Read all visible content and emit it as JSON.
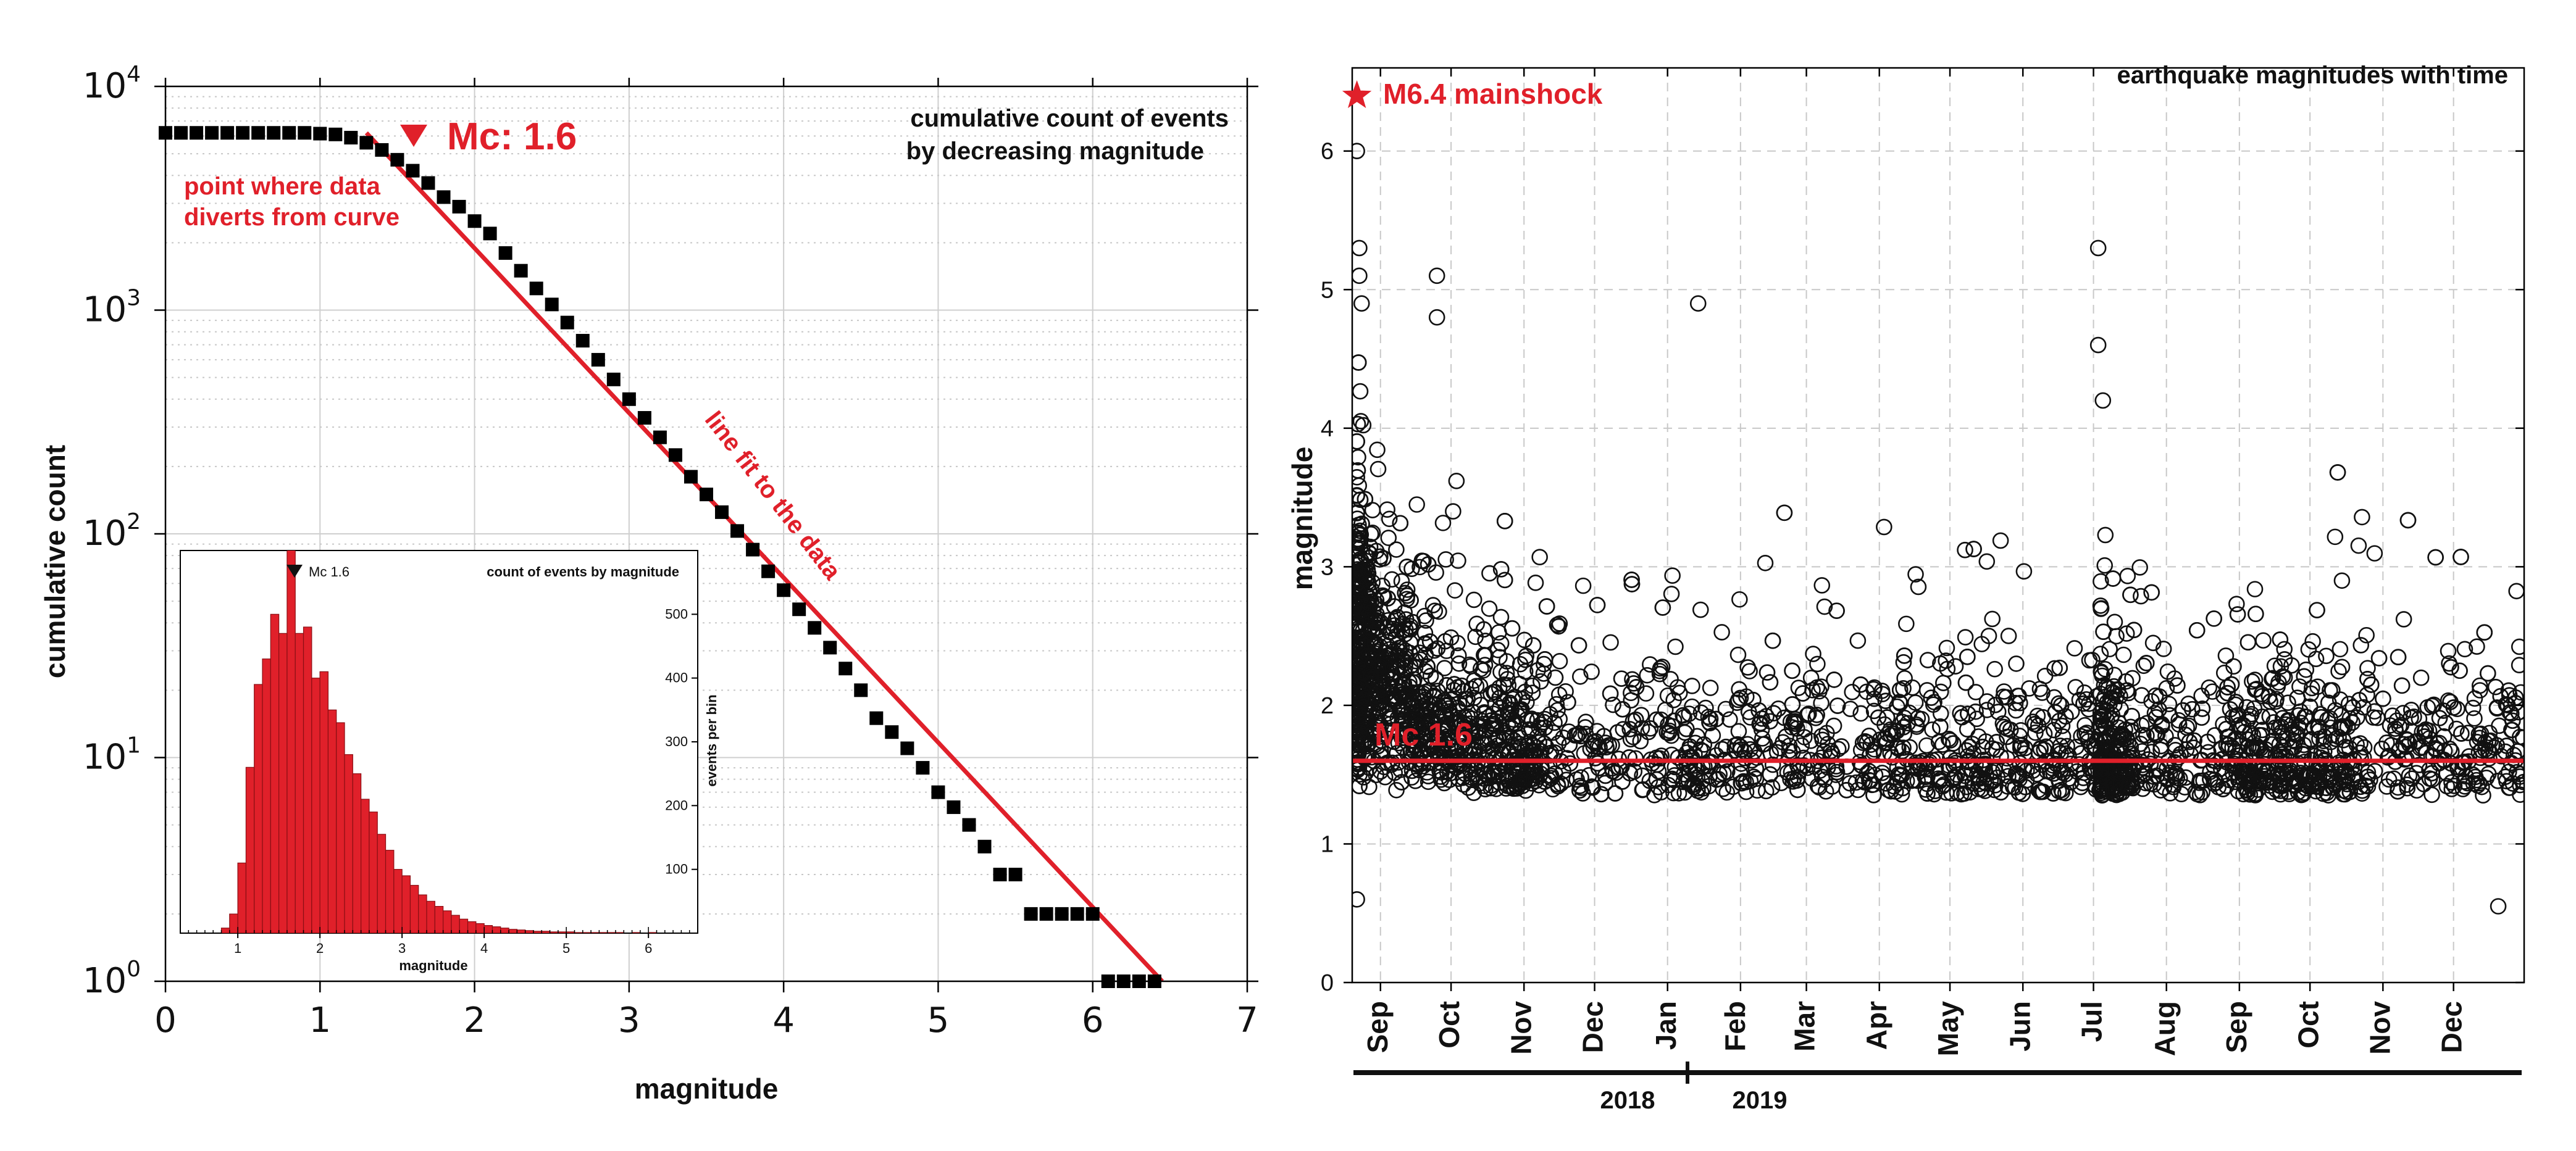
{
  "chart_data": [
    {
      "type": "scatter",
      "title": "cumulative count of events by decreasing magnitude",
      "xlabel": "magnitude",
      "ylabel": "cumulative count",
      "xlim": [
        0,
        7
      ],
      "ylim": [
        1,
        10000
      ],
      "yscale": "log",
      "x_ticks": [
        "0",
        "1",
        "2",
        "3",
        "4",
        "5",
        "6",
        "7"
      ],
      "y_ticks": [
        {
          "base": "10",
          "exp": "0"
        },
        {
          "base": "10",
          "exp": "1"
        },
        {
          "base": "10",
          "exp": "2"
        },
        {
          "base": "10",
          "exp": "3"
        },
        {
          "base": "10",
          "exp": "4"
        }
      ],
      "grid": true,
      "series": [
        {
          "marker": "square",
          "color": "#000000",
          "points": [
            [
              0.0,
              6200
            ],
            [
              0.1,
              6200
            ],
            [
              0.2,
              6200
            ],
            [
              0.3,
              6200
            ],
            [
              0.4,
              6200
            ],
            [
              0.5,
              6200
            ],
            [
              0.6,
              6200
            ],
            [
              0.7,
              6200
            ],
            [
              0.8,
              6200
            ],
            [
              0.9,
              6200
            ],
            [
              1.0,
              6150
            ],
            [
              1.1,
              6100
            ],
            [
              1.2,
              5900
            ],
            [
              1.3,
              5600
            ],
            [
              1.4,
              5200
            ],
            [
              1.5,
              4700
            ],
            [
              1.6,
              4200
            ],
            [
              1.7,
              3700
            ],
            [
              1.8,
              3200
            ],
            [
              1.9,
              2900
            ],
            [
              2.0,
              2500
            ],
            [
              2.1,
              2200
            ],
            [
              2.2,
              1800
            ],
            [
              2.3,
              1500
            ],
            [
              2.4,
              1250
            ],
            [
              2.5,
              1060
            ],
            [
              2.6,
              880
            ],
            [
              2.7,
              730
            ],
            [
              2.8,
              600
            ],
            [
              2.9,
              490
            ],
            [
              3.0,
              400
            ],
            [
              3.1,
              330
            ],
            [
              3.2,
              270
            ],
            [
              3.3,
              225
            ],
            [
              3.4,
              180
            ],
            [
              3.5,
              150
            ],
            [
              3.6,
              125
            ],
            [
              3.7,
              103
            ],
            [
              3.8,
              85
            ],
            [
              3.9,
              68
            ],
            [
              4.0,
              56
            ],
            [
              4.1,
              46
            ],
            [
              4.2,
              38
            ],
            [
              4.3,
              31
            ],
            [
              4.4,
              25
            ],
            [
              4.5,
              20
            ],
            [
              4.6,
              15
            ],
            [
              4.7,
              13
            ],
            [
              4.8,
              11
            ],
            [
              4.9,
              9
            ],
            [
              5.0,
              7
            ],
            [
              5.1,
              6
            ],
            [
              5.2,
              5
            ],
            [
              5.3,
              4
            ],
            [
              5.4,
              3
            ],
            [
              5.5,
              3
            ],
            [
              5.6,
              2
            ],
            [
              5.7,
              2
            ],
            [
              5.8,
              2
            ],
            [
              5.9,
              2
            ],
            [
              6.0,
              2
            ],
            [
              6.1,
              1
            ],
            [
              6.2,
              1
            ],
            [
              6.3,
              1
            ],
            [
              6.4,
              1
            ]
          ]
        }
      ],
      "fit_line": {
        "label": "line fit to the data",
        "color": "#e0202a",
        "from": [
          1.3,
          6200
        ],
        "to": [
          6.45,
          1
        ]
      },
      "annotations": {
        "mc_label": "Mc: 1.6",
        "mc_value": 1.6,
        "divert_note_line1": "point where data",
        "divert_note_line2": "diverts from curve",
        "title_line1": "cumulative count of events",
        "title_line2": "by decreasing magnitude"
      },
      "inset": {
        "type": "bar",
        "title": "count of events by magnitude",
        "xlabel": "magnitude",
        "ylabel": "events per bin",
        "xlim": [
          0.3,
          6.6
        ],
        "ylim": [
          0,
          600
        ],
        "x_ticks": [
          "1",
          "2",
          "3",
          "4",
          "5",
          "6"
        ],
        "y_ticks": [
          "100",
          "200",
          "300",
          "400",
          "500"
        ],
        "mc_label": "Mc 1.6",
        "mc_value": 1.6,
        "bar_color": "#e0202a",
        "bin_width": 0.1,
        "bins_start": [
          0.8,
          0.9,
          1.0,
          1.1,
          1.2,
          1.3,
          1.4,
          1.5,
          1.6,
          1.7,
          1.8,
          1.9,
          2.0,
          2.1,
          2.2,
          2.3,
          2.4,
          2.5,
          2.6,
          2.7,
          2.8,
          2.9,
          3.0,
          3.1,
          3.2,
          3.3,
          3.4,
          3.5,
          3.6,
          3.7,
          3.8,
          3.9,
          4.0,
          4.1,
          4.2,
          4.3,
          4.4,
          4.5,
          4.6,
          4.7,
          4.8,
          4.9,
          5.0,
          5.1,
          5.2,
          5.3,
          5.4,
          5.5,
          5.6,
          5.7,
          5.8,
          5.9,
          6.0
        ],
        "values": [
          8,
          30,
          110,
          260,
          390,
          430,
          500,
          470,
          620,
          470,
          480,
          400,
          410,
          350,
          330,
          280,
          250,
          210,
          190,
          155,
          130,
          100,
          90,
          75,
          60,
          50,
          42,
          35,
          28,
          22,
          18,
          15,
          12,
          10,
          8,
          6,
          5,
          4,
          3,
          3,
          2,
          2,
          2,
          1,
          1,
          1,
          1,
          1,
          1,
          0,
          1,
          0,
          1
        ]
      }
    },
    {
      "type": "scatter",
      "title": "earthquake magnitudes with time",
      "ylabel": "magnitude",
      "ylim": [
        0,
        6.6
      ],
      "y_ticks": [
        "0",
        "1",
        "2",
        "3",
        "4",
        "5",
        "6"
      ],
      "x_months": [
        "Sep",
        "Oct",
        "Nov",
        "Dec",
        "Jan",
        "Feb",
        "Mar",
        "Apr",
        "May",
        "Jun",
        "Jul",
        "Aug",
        "Sep",
        "Oct",
        "Nov",
        "Dec"
      ],
      "x_years": [
        "2018",
        "2019"
      ],
      "xlim": [
        "2018-08-20",
        "2019-12-31"
      ],
      "grid": true,
      "mainshock": {
        "label": "M6.4 mainshock",
        "date": "2018-08-22",
        "magnitude": 6.4,
        "marker": "star",
        "color": "#e0202a"
      },
      "mc_line": {
        "label": "Mc 1.6",
        "magnitude": 1.6,
        "color": "#e0202a"
      },
      "marker": "open-circle",
      "points_note": "dense cloud of roughly 6000 events, magnitudes mostly 0.8–2.5, decaying from ~4.5 just after the mainshock",
      "notable_points": [
        [
          "2018-08-22",
          6.0
        ],
        [
          "2018-08-23",
          5.3
        ],
        [
          "2018-08-23",
          5.1
        ],
        [
          "2018-08-24",
          4.9
        ],
        [
          "2018-09-25",
          5.1
        ],
        [
          "2018-09-25",
          4.8
        ],
        [
          "2019-01-14",
          4.9
        ],
        [
          "2019-07-03",
          5.3
        ],
        [
          "2019-07-03",
          4.6
        ],
        [
          "2019-07-05",
          4.2
        ],
        [
          "2018-08-22",
          0.6
        ],
        [
          "2019-12-20",
          0.55
        ]
      ]
    }
  ]
}
